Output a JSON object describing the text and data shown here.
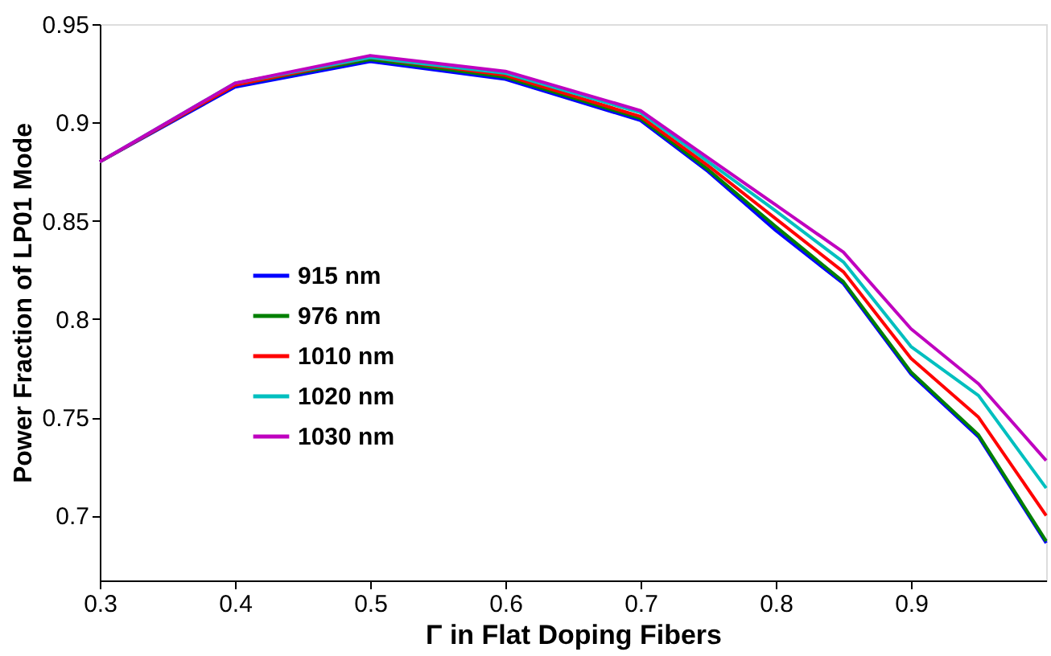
{
  "chart_data": {
    "type": "line",
    "xlabel": "Γ in Flat Doping Fibers",
    "ylabel": "Power Fraction of LP01 Mode",
    "x": [
      0.3,
      0.4,
      0.5,
      0.6,
      0.7,
      0.75,
      0.8,
      0.85,
      0.9,
      0.95,
      1.0
    ],
    "series": [
      {
        "name": "915 nm",
        "color": "#0000ff",
        "values": [
          0.88,
          0.918,
          0.931,
          0.922,
          0.901,
          0.875,
          0.845,
          0.818,
          0.772,
          0.74,
          0.686
        ]
      },
      {
        "name": "976 nm",
        "color": "#008000",
        "values": [
          0.88,
          0.919,
          0.932,
          0.923,
          0.902,
          0.876,
          0.847,
          0.819,
          0.773,
          0.741,
          0.687
        ]
      },
      {
        "name": "1010 nm",
        "color": "#ff0000",
        "values": [
          0.88,
          0.919,
          0.933,
          0.924,
          0.903,
          0.878,
          0.851,
          0.824,
          0.78,
          0.75,
          0.7
        ]
      },
      {
        "name": "1020 nm",
        "color": "#00bfbf",
        "values": [
          0.88,
          0.92,
          0.933,
          0.925,
          0.905,
          0.88,
          0.855,
          0.829,
          0.786,
          0.761,
          0.714
        ]
      },
      {
        "name": "1030 nm",
        "color": "#bf00bf",
        "values": [
          0.88,
          0.92,
          0.934,
          0.926,
          0.906,
          0.882,
          0.858,
          0.834,
          0.795,
          0.767,
          0.728
        ]
      }
    ],
    "xlim": [
      0.3,
      1.0
    ],
    "ylim": [
      0.667,
      0.95
    ],
    "xticks": [
      0.3,
      0.4,
      0.5,
      0.6,
      0.7,
      0.8,
      0.9
    ],
    "yticks": [
      0.7,
      0.75,
      0.8,
      0.85,
      0.9,
      0.95
    ],
    "grid": false,
    "legend": "left",
    "marker": "none",
    "line_style": "solid"
  }
}
